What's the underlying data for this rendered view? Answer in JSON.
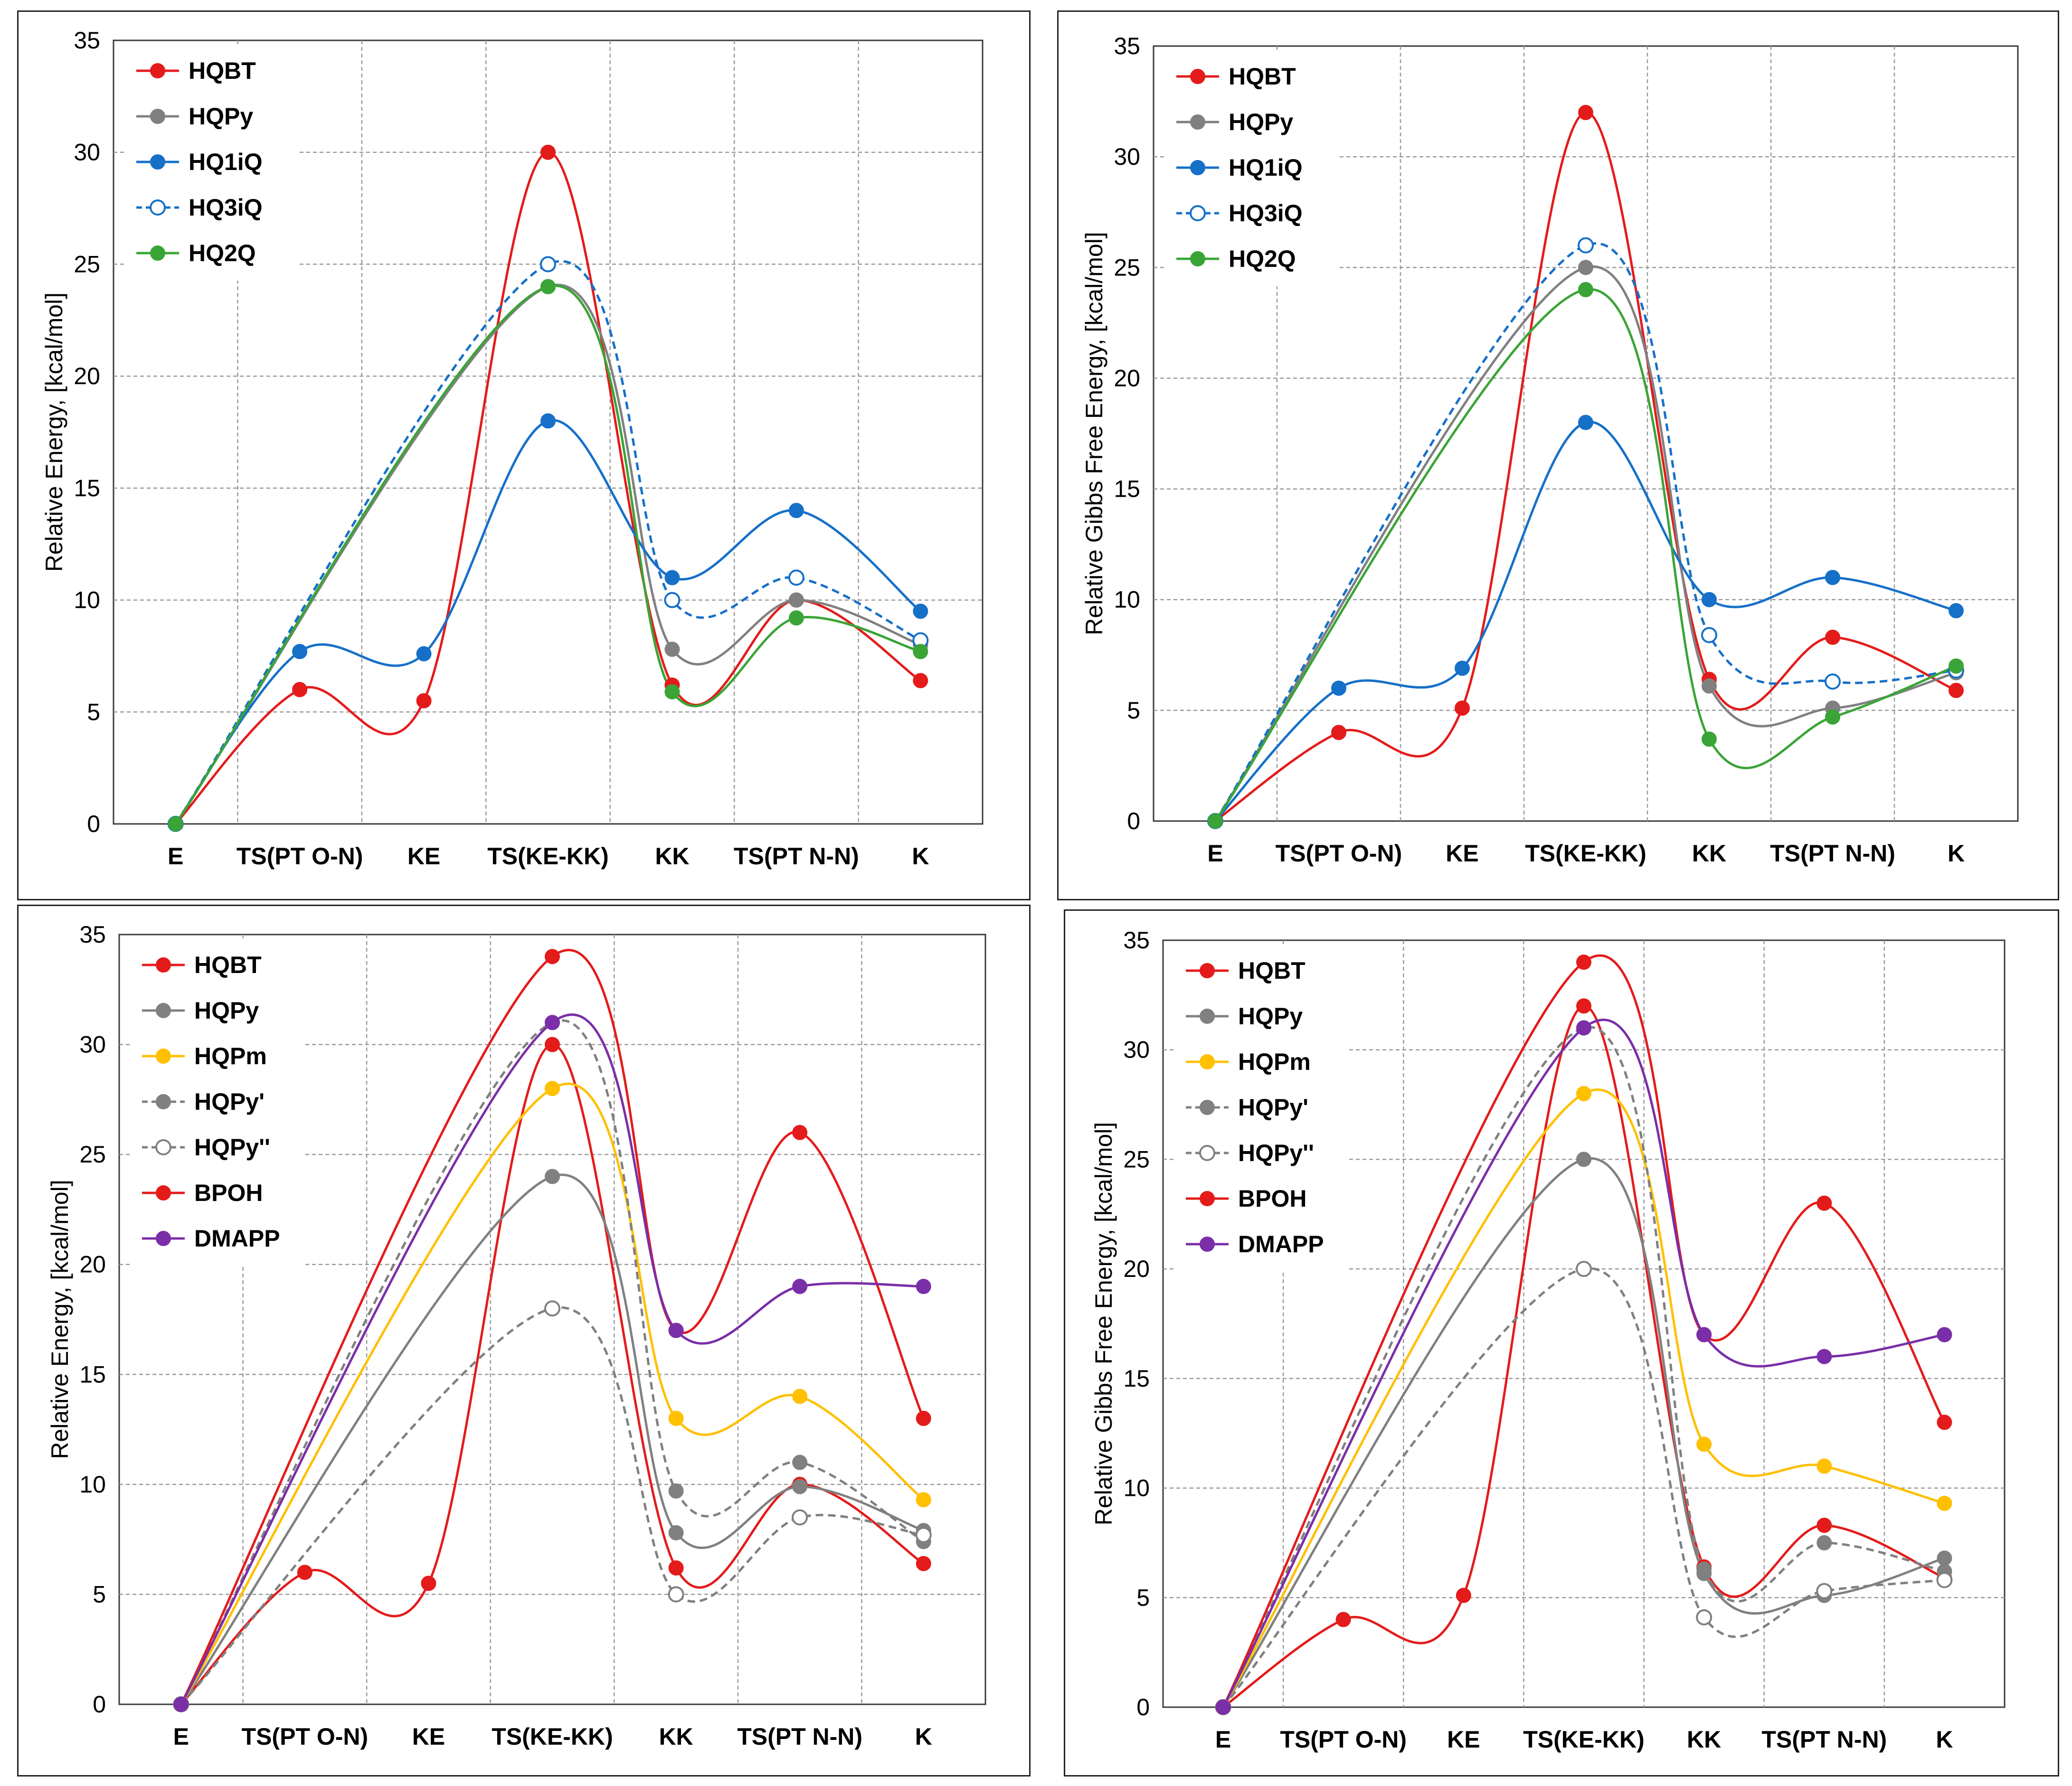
{
  "colors": {
    "red": "#e41b1b",
    "gray": "#808080",
    "blue": "#1670c8",
    "green": "#3aa436",
    "yellow": "#ffc000",
    "purple": "#7a2ea8",
    "grid": "#9a9a9a",
    "axis": "#404040"
  },
  "chart_data": [
    {
      "type": "line",
      "position": "top-left",
      "title": "",
      "xlabel": "",
      "ylabel": "Relative Energy, [kcal/mol]",
      "categories": [
        "E",
        "TS(PT O-N)",
        "KE",
        "TS(KE-KK)",
        "KK",
        "TS(PT N-N)",
        "K"
      ],
      "ylim": [
        0,
        35
      ],
      "yticks": [
        0,
        5,
        10,
        15,
        20,
        25,
        30,
        35
      ],
      "grid": true,
      "legend": "top-left",
      "series": [
        {
          "name": "HQBT",
          "color": "red",
          "dashed": false,
          "open": false,
          "values": [
            0,
            6.0,
            5.5,
            30.0,
            6.2,
            10.0,
            6.4
          ]
        },
        {
          "name": "HQPy",
          "color": "gray",
          "dashed": false,
          "open": false,
          "values": [
            0,
            null,
            null,
            24.0,
            7.8,
            10.0,
            8.0
          ]
        },
        {
          "name": "HQ1iQ",
          "color": "blue",
          "dashed": false,
          "open": false,
          "values": [
            0,
            7.7,
            7.6,
            18.0,
            11.0,
            14.0,
            9.5
          ]
        },
        {
          "name": "HQ3iQ",
          "color": "blue",
          "dashed": true,
          "open": true,
          "values": [
            0,
            null,
            null,
            25.0,
            10.0,
            11.0,
            8.2
          ]
        },
        {
          "name": "HQ2Q",
          "color": "green",
          "dashed": false,
          "open": false,
          "values": [
            0,
            null,
            null,
            24.0,
            5.9,
            9.2,
            7.7
          ]
        }
      ]
    },
    {
      "type": "line",
      "position": "top-right",
      "title": "",
      "xlabel": "",
      "ylabel": "Relative Gibbs Free Energy, [kcal/mol]",
      "categories": [
        "E",
        "TS(PT O-N)",
        "KE",
        "TS(KE-KK)",
        "KK",
        "TS(PT N-N)",
        "K"
      ],
      "ylim": [
        0,
        35
      ],
      "yticks": [
        0,
        5,
        10,
        15,
        20,
        25,
        30,
        35
      ],
      "grid": true,
      "legend": "top-left",
      "series": [
        {
          "name": "HQBT",
          "color": "red",
          "dashed": false,
          "open": false,
          "values": [
            0,
            4.0,
            5.1,
            32.0,
            6.4,
            8.3,
            5.9
          ]
        },
        {
          "name": "HQPy",
          "color": "gray",
          "dashed": false,
          "open": false,
          "values": [
            0,
            null,
            null,
            25.0,
            6.1,
            5.1,
            6.7
          ]
        },
        {
          "name": "HQ1iQ",
          "color": "blue",
          "dashed": false,
          "open": false,
          "values": [
            0,
            6.0,
            6.9,
            18.0,
            10.0,
            11.0,
            9.5
          ]
        },
        {
          "name": "HQ3iQ",
          "color": "blue",
          "dashed": true,
          "open": true,
          "values": [
            0,
            null,
            null,
            26.0,
            8.4,
            6.3,
            6.8
          ]
        },
        {
          "name": "HQ2Q",
          "color": "green",
          "dashed": false,
          "open": false,
          "values": [
            0,
            null,
            null,
            24.0,
            3.7,
            4.7,
            7.0
          ]
        }
      ]
    },
    {
      "type": "line",
      "position": "bottom-left",
      "title": "",
      "xlabel": "",
      "ylabel": "Relative Energy, [kcal/mol]",
      "categories": [
        "E",
        "TS(PT O-N)",
        "KE",
        "TS(KE-KK)",
        "KK",
        "TS(PT N-N)",
        "K"
      ],
      "ylim": [
        0,
        35
      ],
      "yticks": [
        0,
        5,
        10,
        15,
        20,
        25,
        30,
        35
      ],
      "grid": true,
      "legend": "top-left",
      "series": [
        {
          "name": "HQBT",
          "color": "red",
          "dashed": false,
          "open": false,
          "values": [
            0,
            6.0,
            5.5,
            30.0,
            6.2,
            10.0,
            6.4
          ]
        },
        {
          "name": "HQPy",
          "color": "gray",
          "dashed": false,
          "open": false,
          "values": [
            0,
            null,
            null,
            24.0,
            7.8,
            9.9,
            7.9
          ]
        },
        {
          "name": "HQPm",
          "color": "yellow",
          "dashed": false,
          "open": false,
          "values": [
            0,
            null,
            null,
            28.0,
            13.0,
            14.0,
            9.3
          ]
        },
        {
          "name": "HQPy'",
          "color": "gray",
          "dashed": true,
          "open": false,
          "values": [
            0,
            null,
            null,
            31.0,
            9.7,
            11.0,
            7.4
          ]
        },
        {
          "name": "HQPy''",
          "color": "gray",
          "dashed": true,
          "open": true,
          "values": [
            0,
            null,
            null,
            18.0,
            5.0,
            8.5,
            7.7
          ]
        },
        {
          "name": "BPOH",
          "color": "red",
          "dashed": false,
          "open": false,
          "values": [
            0,
            null,
            null,
            34.0,
            17.0,
            26.0,
            13.0
          ]
        },
        {
          "name": "DMAPP",
          "color": "purple",
          "dashed": false,
          "open": false,
          "values": [
            0,
            null,
            null,
            31.0,
            17.0,
            19.0,
            19.0
          ]
        }
      ]
    },
    {
      "type": "line",
      "position": "bottom-right",
      "title": "",
      "xlabel": "",
      "ylabel": "Relative Gibbs Free Energy, [kcal/mol]",
      "categories": [
        "E",
        "TS(PT O-N)",
        "KE",
        "TS(KE-KK)",
        "KK",
        "TS(PT N-N)",
        "K"
      ],
      "ylim": [
        0,
        35
      ],
      "yticks": [
        0,
        5,
        10,
        15,
        20,
        25,
        30,
        35
      ],
      "grid": true,
      "legend": "top-left",
      "series": [
        {
          "name": "HQBT",
          "color": "red",
          "dashed": false,
          "open": false,
          "values": [
            0,
            4.0,
            5.1,
            32.0,
            6.4,
            8.3,
            5.9
          ]
        },
        {
          "name": "HQPy",
          "color": "gray",
          "dashed": false,
          "open": false,
          "values": [
            0,
            null,
            null,
            25.0,
            6.1,
            5.1,
            6.8
          ]
        },
        {
          "name": "HQPm",
          "color": "yellow",
          "dashed": false,
          "open": false,
          "values": [
            0,
            null,
            null,
            28.0,
            12.0,
            11.0,
            9.3
          ]
        },
        {
          "name": "HQPy'",
          "color": "gray",
          "dashed": true,
          "open": false,
          "values": [
            0,
            null,
            null,
            31.0,
            6.3,
            7.5,
            6.2
          ]
        },
        {
          "name": "HQPy''",
          "color": "gray",
          "dashed": true,
          "open": true,
          "values": [
            0,
            null,
            null,
            20.0,
            4.1,
            5.3,
            5.8
          ]
        },
        {
          "name": "BPOH",
          "color": "red",
          "dashed": false,
          "open": false,
          "values": [
            0,
            null,
            null,
            34.0,
            17.0,
            23.0,
            13.0
          ]
        },
        {
          "name": "DMAPP",
          "color": "purple",
          "dashed": false,
          "open": false,
          "values": [
            0,
            null,
            null,
            31.0,
            17.0,
            16.0,
            17.0
          ]
        }
      ]
    }
  ]
}
